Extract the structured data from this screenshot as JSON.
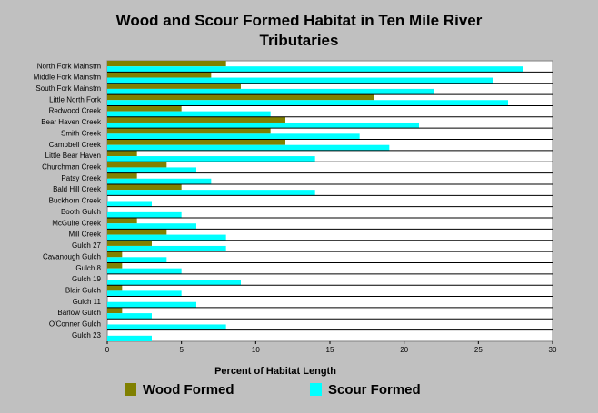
{
  "chart_data": {
    "type": "hbar",
    "title": "Wood and Scour Formed Habitat in Ten Mile River Tributaries",
    "x_label": "Percent of Habitat Length",
    "categories": [
      "North Fork Mainstm",
      "Middle Fork Mainstm",
      "South Fork Mainstm",
      "Little North Fork",
      "Redwood Creek",
      "Bear Haven Creek",
      "Smith Creek",
      "Campbell Creek",
      "Little Bear Haven",
      "Churchman Creek",
      "Patsy Creek",
      "Bald Hill Creek",
      "Buckhorn Creek",
      "Booth Gulch",
      "McGuire Creek",
      "Mill Creek",
      "Gulch 27",
      "Cavanough Gulch",
      "Gulch 8",
      "Gulch 19",
      "Blair Gulch",
      "Gulch 11",
      "Barlow Gulch",
      "O'Conner Gulch",
      "Gulch 23"
    ],
    "series": [
      {
        "name": "Wood Formed",
        "color": "#808000",
        "values": [
          8,
          7,
          9,
          18,
          5,
          12,
          11,
          12,
          2,
          4,
          2,
          5,
          0,
          0,
          2,
          4,
          3,
          1,
          1,
          0,
          1,
          0,
          1,
          0,
          0
        ]
      },
      {
        "name": "Scour Formed",
        "color": "#00ffff",
        "values": [
          28,
          26,
          22,
          27,
          11,
          21,
          17,
          19,
          14,
          6,
          7,
          14,
          3,
          5,
          6,
          8,
          8,
          4,
          5,
          9,
          5,
          6,
          3,
          8,
          3
        ]
      }
    ],
    "xlim": [
      0,
      30
    ],
    "xticks": [
      0,
      5,
      10,
      15,
      20,
      25,
      30
    ],
    "grid": true,
    "legend": "bottom"
  }
}
